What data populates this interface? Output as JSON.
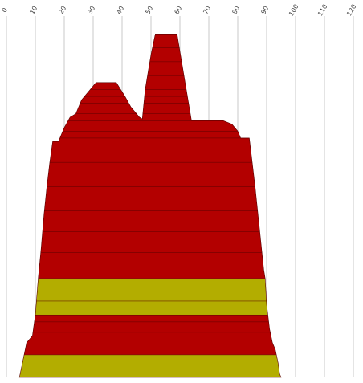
{
  "chart_data": {
    "type": "area",
    "title": "",
    "xlabel": "",
    "ylabel": "",
    "x_ticks": [
      "0",
      "10",
      "20",
      "30",
      "40",
      "50",
      "60",
      "70",
      "80",
      "90",
      "100",
      "110",
      "120"
    ],
    "xlim": [
      0,
      120
    ],
    "grid": "vertical",
    "legend": "none",
    "colors": {
      "red": "#b30000",
      "olive": "#b3ad00",
      "divider": "#5a0000"
    },
    "outline": [
      [
        51.5,
        1
      ],
      [
        59,
        1
      ],
      [
        60,
        6
      ],
      [
        61,
        11
      ],
      [
        62,
        16
      ],
      [
        63,
        21
      ],
      [
        64,
        26
      ],
      [
        75,
        26
      ],
      [
        78,
        27
      ],
      [
        80,
        29
      ],
      [
        81,
        31
      ],
      [
        84,
        31
      ],
      [
        85,
        38
      ],
      [
        86,
        45
      ],
      [
        87,
        53
      ],
      [
        88,
        61
      ],
      [
        89,
        69
      ],
      [
        89.5,
        71.5
      ],
      [
        90,
        79
      ],
      [
        91,
        86
      ],
      [
        92,
        90
      ],
      [
        93,
        92
      ],
      [
        94,
        96
      ],
      [
        94.5,
        99
      ],
      [
        95,
        100
      ],
      [
        4.5,
        100
      ],
      [
        5.5,
        96
      ],
      [
        7,
        90
      ],
      [
        9,
        88
      ],
      [
        10,
        82
      ],
      [
        11,
        71.5
      ],
      [
        12,
        63
      ],
      [
        13,
        53
      ],
      [
        14,
        45
      ],
      [
        15,
        38
      ],
      [
        16,
        32
      ],
      [
        18,
        32
      ],
      [
        20,
        28
      ],
      [
        22,
        25
      ],
      [
        24,
        24
      ],
      [
        26,
        20
      ],
      [
        29,
        17
      ],
      [
        31,
        15
      ],
      [
        38,
        15
      ],
      [
        41,
        19
      ],
      [
        43,
        22
      ],
      [
        46,
        25
      ],
      [
        47,
        25.5
      ],
      [
        48,
        17
      ],
      [
        49,
        12
      ],
      [
        50,
        7
      ]
    ],
    "bands": [
      {
        "from": 0,
        "to": 71.5,
        "color": "red"
      },
      {
        "from": 71.5,
        "to": 80,
        "color": "olive"
      },
      {
        "from": 80,
        "to": 82,
        "color": "olive"
      },
      {
        "from": 82,
        "to": 93.5,
        "color": "red"
      },
      {
        "from": 93.5,
        "to": 100,
        "color": "olive"
      }
    ],
    "dividers": [
      5,
      9,
      13,
      17,
      19,
      21,
      24,
      26,
      27,
      29,
      31,
      38,
      45,
      52,
      58,
      64,
      71.5,
      78,
      82,
      84,
      87,
      93.5
    ]
  }
}
